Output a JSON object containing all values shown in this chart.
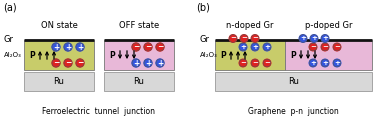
{
  "fig_width": 3.78,
  "fig_height": 1.29,
  "dpi": 100,
  "background": "#ffffff",
  "olive_green": "#c8cc6a",
  "pink": "#e8b8d8",
  "gray_ru": "#d8d8d8",
  "graphene_color": "#111111",
  "panel_a_label": "(a)",
  "panel_b_label": "(b)",
  "label_gr": "Gr",
  "label_al2o3": "Al₂O₃",
  "label_ru": "Ru",
  "on_state": "ON state",
  "off_state": "OFF state",
  "n_doped": "n-doped Gr",
  "p_doped": "p-doped Gr",
  "ftj_label": "Ferroelectric  tunnel  junction",
  "pn_label": "Graphene  p-n  junction",
  "red": "#dd2222",
  "blue": "#3355dd",
  "black": "#000000",
  "text_color": "#222222"
}
